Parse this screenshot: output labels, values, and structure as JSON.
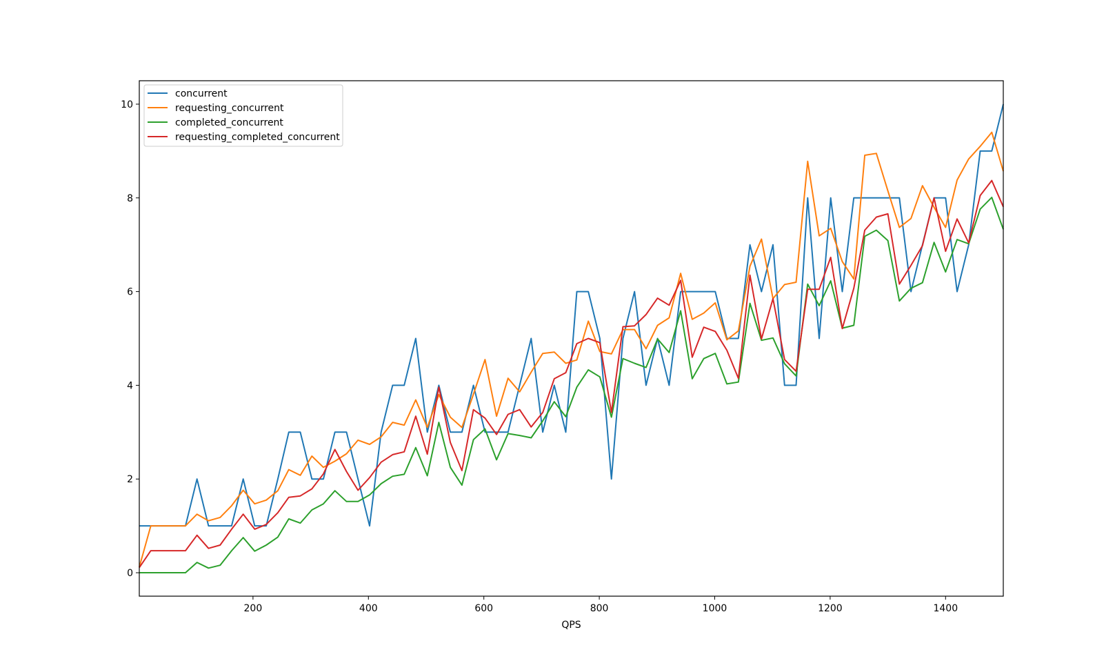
{
  "chart_data": {
    "type": "line",
    "title": "",
    "xlabel": "QPS",
    "ylabel": "",
    "xlim": [
      3,
      1500
    ],
    "ylim": [
      -0.5,
      10.5
    ],
    "xticks": [
      200,
      400,
      600,
      800,
      1000,
      1200,
      1400
    ],
    "yticks": [
      0,
      2,
      4,
      6,
      8,
      10
    ],
    "grid": false,
    "legend_placement": "upper-left",
    "x": [
      3,
      23,
      43,
      63,
      83,
      103,
      123,
      143,
      163,
      183,
      203,
      223,
      243,
      262,
      282,
      302,
      322,
      342,
      362,
      382,
      402,
      422,
      442,
      462,
      482,
      502,
      522,
      542,
      562,
      582,
      602,
      622,
      642,
      662,
      682,
      702,
      722,
      742,
      761,
      781,
      801,
      821,
      841,
      861,
      881,
      901,
      921,
      941,
      961,
      981,
      1001,
      1021,
      1041,
      1061,
      1081,
      1101,
      1121,
      1141,
      1161,
      1181,
      1201,
      1221,
      1241,
      1260,
      1280,
      1300,
      1320,
      1340,
      1360,
      1380,
      1400,
      1420,
      1440,
      1460,
      1480,
      1500
    ],
    "series": [
      {
        "name": "concurrent",
        "color": "#1f77b4",
        "values": [
          1,
          1,
          1,
          1,
          1,
          2,
          1,
          1,
          1,
          2,
          1,
          1,
          2,
          3,
          3,
          2,
          2,
          3,
          3,
          2,
          1,
          3,
          4,
          4,
          5,
          3,
          4,
          3,
          3,
          4,
          3,
          3,
          3,
          4,
          5,
          3,
          4,
          3,
          6,
          6,
          5,
          2,
          5,
          6,
          4,
          5,
          4,
          6,
          6,
          6,
          6,
          5,
          5,
          7,
          6,
          7,
          4,
          4,
          8,
          5,
          8,
          6,
          8,
          8,
          8,
          8,
          8,
          6,
          7,
          8,
          8,
          6,
          7,
          9,
          9,
          10
        ]
      },
      {
        "name": "requesting_concurrent",
        "color": "#ff7f0e",
        "values": [
          0.12,
          1,
          1,
          1,
          1,
          1.25,
          1.11,
          1.18,
          1.43,
          1.76,
          1.47,
          1.55,
          1.75,
          2.2,
          2.08,
          2.49,
          2.25,
          2.38,
          2.54,
          2.83,
          2.74,
          2.9,
          3.21,
          3.15,
          3.69,
          3.1,
          3.8,
          3.32,
          3.1,
          3.81,
          4.55,
          3.34,
          4.15,
          3.86,
          4.28,
          4.68,
          4.71,
          4.47,
          4.54,
          5.37,
          4.72,
          4.67,
          5.19,
          5.19,
          4.78,
          5.28,
          5.44,
          6.39,
          5.41,
          5.54,
          5.76,
          4.97,
          5.16,
          6.54,
          7.12,
          5.85,
          6.15,
          6.2,
          8.78,
          7.19,
          7.35,
          6.64,
          6.27,
          8.91,
          8.95,
          8.15,
          7.37,
          7.56,
          8.26,
          7.8,
          7.37,
          8.38,
          8.83,
          9.1,
          9.4,
          8.57
        ]
      },
      {
        "name": "completed_concurrent",
        "color": "#2ca02c",
        "values": [
          0,
          0,
          0,
          0,
          0,
          0.22,
          0.1,
          0.16,
          0.47,
          0.75,
          0.46,
          0.59,
          0.76,
          1.15,
          1.06,
          1.34,
          1.47,
          1.75,
          1.52,
          1.52,
          1.66,
          1.9,
          2.06,
          2.1,
          2.67,
          2.07,
          3.21,
          2.25,
          1.87,
          2.84,
          3.07,
          2.41,
          2.97,
          2.93,
          2.88,
          3.24,
          3.65,
          3.33,
          3.96,
          4.33,
          4.18,
          3.32,
          4.57,
          4.47,
          4.38,
          4.99,
          4.7,
          5.59,
          4.14,
          4.57,
          4.68,
          4.03,
          4.07,
          5.75,
          4.96,
          5.01,
          4.46,
          4.2,
          6.16,
          5.7,
          6.23,
          5.22,
          5.28,
          7.18,
          7.31,
          7.09,
          5.8,
          6.07,
          6.19,
          7.05,
          6.42,
          7.11,
          7.02,
          7.76,
          8.01,
          7.33
        ]
      },
      {
        "name": "requesting_completed_concurrent",
        "color": "#d62728",
        "values": [
          0.11,
          0.47,
          0.47,
          0.47,
          0.47,
          0.8,
          0.52,
          0.59,
          0.93,
          1.25,
          0.93,
          1.03,
          1.28,
          1.61,
          1.64,
          1.79,
          2.11,
          2.63,
          2.16,
          1.76,
          2.03,
          2.36,
          2.52,
          2.58,
          3.34,
          2.53,
          3.96,
          2.78,
          2.18,
          3.48,
          3.3,
          2.95,
          3.38,
          3.48,
          3.11,
          3.42,
          4.14,
          4.27,
          4.89,
          5.0,
          4.91,
          3.42,
          5.25,
          5.27,
          5.51,
          5.86,
          5.71,
          6.24,
          4.6,
          5.24,
          5.15,
          4.75,
          4.15,
          6.35,
          4.99,
          5.85,
          4.55,
          4.3,
          6.05,
          6.05,
          6.73,
          5.21,
          6.07,
          7.31,
          7.59,
          7.66,
          6.16,
          6.56,
          6.98,
          8.0,
          6.86,
          7.55,
          7.04,
          8.05,
          8.37,
          7.81
        ]
      }
    ]
  }
}
